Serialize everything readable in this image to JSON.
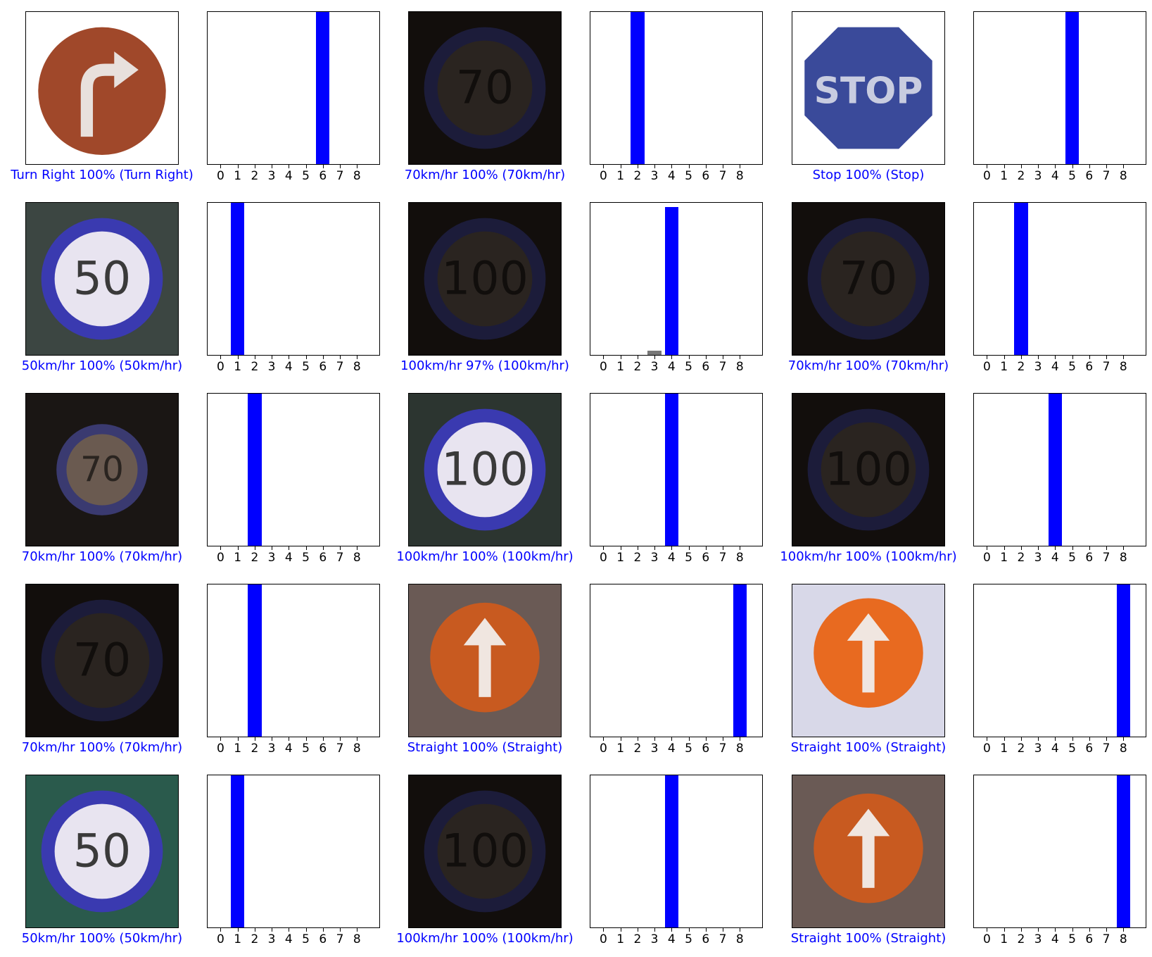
{
  "colors": {
    "correct": "#0000ff",
    "other": "#777777"
  },
  "chart_data": {
    "type": "bar",
    "categories": [
      "0",
      "1",
      "2",
      "3",
      "4",
      "5",
      "6",
      "7",
      "8"
    ],
    "ylim": [
      0,
      1
    ],
    "panels": [
      {
        "caption": "Turn Right 100% (Turn Right)",
        "sign": "turn-right",
        "values": [
          0,
          0,
          0,
          0,
          0,
          0,
          1,
          0,
          0
        ]
      },
      {
        "caption": "70km/hr 100% (70km/hr)",
        "sign": "70-dark",
        "values": [
          0,
          0,
          1,
          0,
          0,
          0,
          0,
          0,
          0
        ]
      },
      {
        "caption": "Stop 100% (Stop)",
        "sign": "stop",
        "values": [
          0,
          0,
          0,
          0,
          0,
          1,
          0,
          0,
          0
        ]
      },
      {
        "caption": "50km/hr 100% (50km/hr)",
        "sign": "50-faded",
        "values": [
          0,
          1,
          0,
          0,
          0,
          0,
          0,
          0,
          0
        ]
      },
      {
        "caption": "100km/hr 97% (100km/hr)",
        "sign": "100-dark",
        "values": [
          0,
          0,
          0,
          0.03,
          0.97,
          0,
          0,
          0,
          0
        ]
      },
      {
        "caption": "70km/hr 100% (70km/hr)",
        "sign": "70-dark",
        "values": [
          0,
          0,
          1,
          0,
          0,
          0,
          0,
          0,
          0
        ]
      },
      {
        "caption": "70km/hr 100% (70km/hr)",
        "sign": "70-small",
        "values": [
          0,
          0,
          1,
          0,
          0,
          0,
          0,
          0,
          0
        ]
      },
      {
        "caption": "100km/hr 100% (100km/hr)",
        "sign": "100-bright",
        "values": [
          0,
          0,
          0,
          0,
          1,
          0,
          0,
          0,
          0
        ]
      },
      {
        "caption": "100km/hr 100% (100km/hr)",
        "sign": "100-dark",
        "values": [
          0,
          0,
          0,
          0,
          1,
          0,
          0,
          0,
          0
        ]
      },
      {
        "caption": "70km/hr 100% (70km/hr)",
        "sign": "70-dark",
        "values": [
          0,
          0,
          1,
          0,
          0,
          0,
          0,
          0,
          0
        ]
      },
      {
        "caption": "Straight 100% (Straight)",
        "sign": "straight",
        "values": [
          0,
          0,
          0,
          0,
          0,
          0,
          0,
          0,
          1
        ]
      },
      {
        "caption": "Straight 100% (Straight)",
        "sign": "straight-bright",
        "values": [
          0,
          0,
          0,
          0,
          0,
          0,
          0,
          0,
          1
        ]
      },
      {
        "caption": "50km/hr 100% (50km/hr)",
        "sign": "50-bright",
        "values": [
          0,
          1,
          0,
          0,
          0,
          0,
          0,
          0,
          0
        ]
      },
      {
        "caption": "100km/hr 100% (100km/hr)",
        "sign": "100-dark",
        "values": [
          0,
          0,
          0,
          0,
          1,
          0,
          0,
          0,
          0
        ]
      },
      {
        "caption": "Straight 100% (Straight)",
        "sign": "straight",
        "values": [
          0,
          0,
          0,
          0,
          0,
          0,
          0,
          0,
          1
        ]
      }
    ]
  }
}
